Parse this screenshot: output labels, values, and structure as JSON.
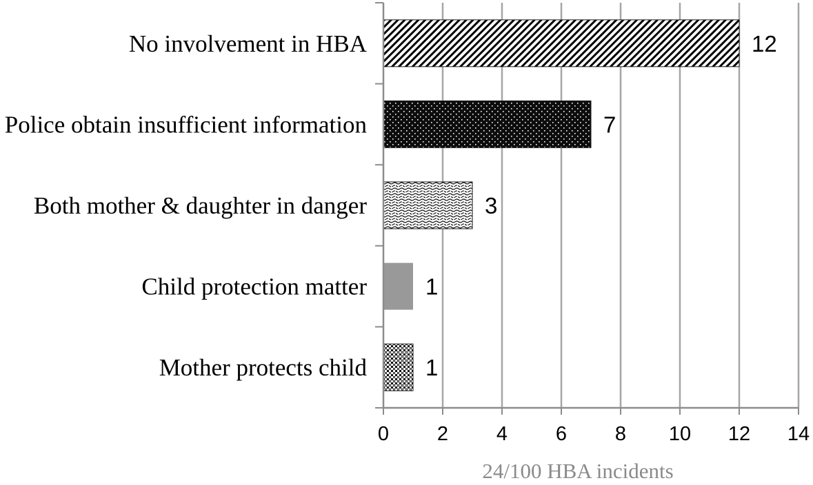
{
  "chart_data": {
    "type": "bar",
    "orientation": "horizontal",
    "categories": [
      "No involvement in HBA",
      "Police obtain insufficient information",
      "Both mother & daughter in danger",
      "Child protection matter",
      "Mother protects child"
    ],
    "values": [
      12,
      7,
      3,
      1,
      1
    ],
    "data_labels": [
      "12",
      "7",
      "3",
      "1",
      "1"
    ],
    "bar_fills": [
      "diagonal-hatch",
      "dense-dots",
      "wavy-dashes",
      "solid-gray",
      "checker-dots"
    ],
    "bar_colors": [
      "#000000",
      "#111111",
      "#222222",
      "#999999",
      "#222222"
    ],
    "xlim": [
      0,
      14
    ],
    "xticks": [
      "0",
      "2",
      "4",
      "6",
      "8",
      "10",
      "12",
      "14"
    ],
    "xlabel": "24/100 HBA incidents",
    "ylabel": "",
    "title": "",
    "grid": "vertical",
    "legend": "none"
  }
}
